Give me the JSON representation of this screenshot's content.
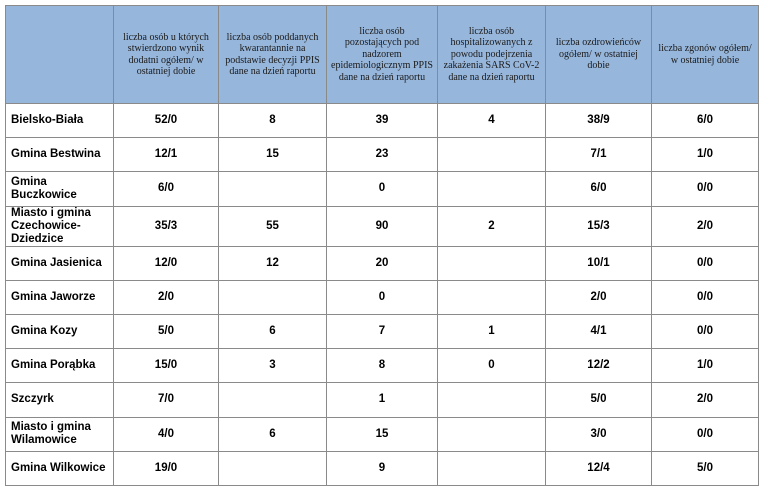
{
  "columns": [
    "",
    "liczba osób u których stwierdzono wynik dodatni ogółem/ w ostatniej dobie",
    "liczba osób poddanych kwarantannie na podstawie decyzji PPIS dane na dzień raportu",
    "liczba osób pozostających pod nadzorem epidemiologicznym PPIS dane na dzień raportu",
    "liczba osób hospitalizowanych z powodu podejrzenia zakażenia SARS CoV-2 dane na dzień raportu",
    "liczba ozdrowieńców ogółem/ w ostatniej dobie",
    "liczba zgonów ogółem/ w ostatniej dobie"
  ],
  "rows": [
    [
      "Bielsko-Biała",
      "52/0",
      "8",
      "39",
      "4",
      "38/9",
      "6/0"
    ],
    [
      "Gmina Bestwina",
      "12/1",
      "15",
      "23",
      "",
      "7/1",
      "1/0"
    ],
    [
      "Gmina Buczkowice",
      "6/0",
      "",
      "0",
      "",
      "6/0",
      "0/0"
    ],
    [
      "Miasto i gmina Czechowice-Dziedzice",
      "35/3",
      "55",
      "90",
      "2",
      "15/3",
      "2/0"
    ],
    [
      "Gmina Jasienica",
      "12/0",
      "12",
      "20",
      "",
      "10/1",
      "0/0"
    ],
    [
      "Gmina Jaworze",
      "2/0",
      "",
      "0",
      "",
      "2/0",
      "0/0"
    ],
    [
      "Gmina Kozy",
      "5/0",
      "6",
      "7",
      "1",
      "4/1",
      "0/0"
    ],
    [
      "Gmina Porąbka",
      "15/0",
      "3",
      "8",
      "0",
      "12/2",
      "1/0"
    ],
    [
      "Szczyrk",
      "7/0",
      "",
      "1",
      "",
      "5/0",
      "2/0"
    ],
    [
      "Miasto i gmina Wilamowice",
      "4/0",
      "6",
      "15",
      "",
      "3/0",
      "0/0"
    ],
    [
      "Gmina Wilkowice",
      "19/0",
      "",
      "9",
      "",
      "12/4",
      "5/0"
    ]
  ],
  "colors": {
    "header_bg": "#97b6db",
    "border": "#8a8a8a"
  }
}
